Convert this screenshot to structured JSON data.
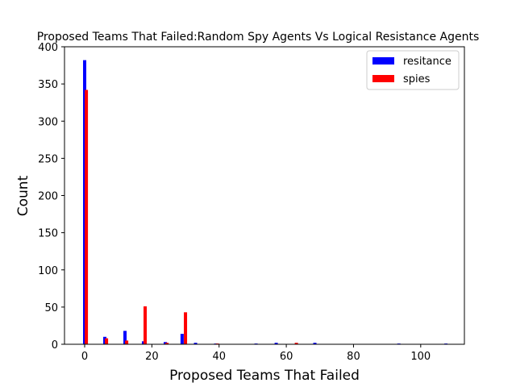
{
  "chart_data": {
    "type": "bar",
    "title": "Proposed Teams That Failed:Random Spy Agents Vs Logical Resistance Agents",
    "xlabel": "Proposed Teams That Failed",
    "ylabel": "Count",
    "xlim": [
      -6,
      113
    ],
    "ylim": [
      0,
      400
    ],
    "xticks": [
      0,
      20,
      40,
      60,
      80,
      100
    ],
    "yticks": [
      0,
      50,
      100,
      150,
      200,
      250,
      300,
      350,
      400
    ],
    "grid": false,
    "legend_position": "top-right",
    "series": [
      {
        "name": "resitance",
        "color": "#0000ff",
        "x": [
          0,
          6,
          12,
          17.5,
          24,
          29,
          33,
          39,
          51,
          57,
          68.5,
          93.5,
          107.5
        ],
        "values": [
          382,
          10,
          18,
          4,
          3,
          14,
          2,
          1,
          1,
          2,
          2,
          1,
          1
        ]
      },
      {
        "name": "spies",
        "color": "#ff0000",
        "x": [
          0.5,
          6.5,
          12.5,
          18,
          24.5,
          30,
          39.5,
          63
        ],
        "values": [
          342,
          8,
          5,
          51,
          2,
          43,
          1,
          2
        ]
      }
    ]
  }
}
